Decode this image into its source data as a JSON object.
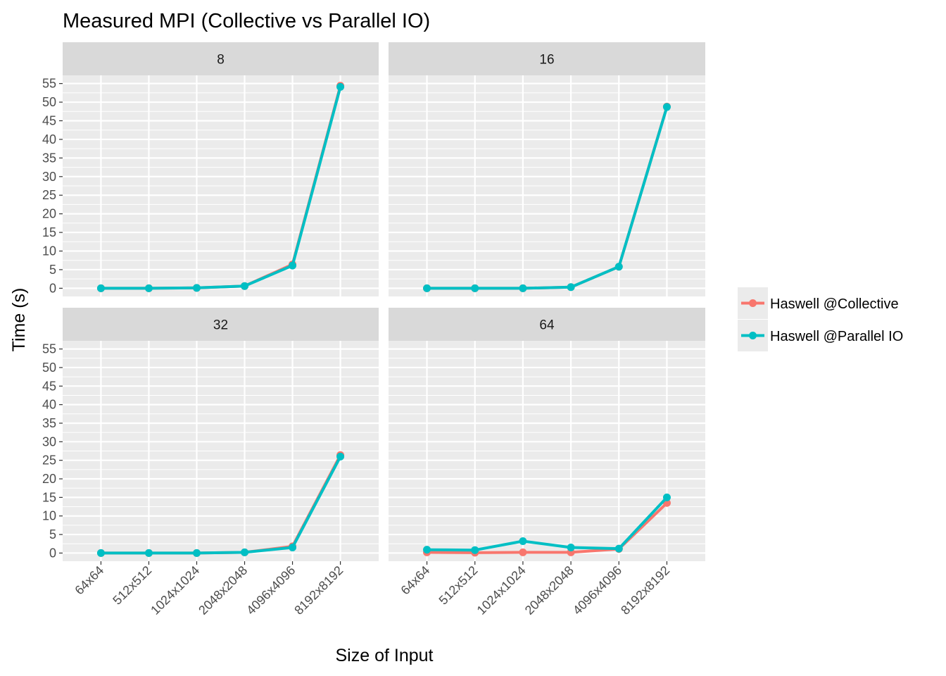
{
  "chart_data": {
    "type": "line",
    "title": "Measured MPI (Collective vs Parallel IO)",
    "xlabel": "Size of Input",
    "ylabel": "Time (s)",
    "categories": [
      "64x64",
      "512x512",
      "1024x1024",
      "2048x2048",
      "4096x4096",
      "8192x8192"
    ],
    "y_ticks": [
      "0",
      "5",
      "10",
      "15",
      "20",
      "25",
      "30",
      "35",
      "40",
      "45",
      "50",
      "55"
    ],
    "ylim": [
      -2.2,
      57.2
    ],
    "grid": true,
    "legend_position": "right",
    "series_colors": {
      "Haswell @Collective": "#f8766d",
      "Haswell @Parallel IO": "#00bfc4"
    },
    "legend": [
      "Haswell @Collective",
      "Haswell @Parallel IO"
    ],
    "panels": [
      {
        "label": "8",
        "series": [
          {
            "name": "Haswell @Collective",
            "values": [
              0.0,
              0.0,
              0.1,
              0.6,
              6.4,
              54.4
            ]
          },
          {
            "name": "Haswell @Parallel IO",
            "values": [
              0.0,
              0.0,
              0.1,
              0.6,
              6.1,
              54.1
            ]
          }
        ]
      },
      {
        "label": "16",
        "series": [
          {
            "name": "Haswell @Collective",
            "values": [
              0.0,
              0.0,
              0.0,
              0.3,
              5.8,
              48.8
            ]
          },
          {
            "name": "Haswell @Parallel IO",
            "values": [
              0.0,
              0.0,
              0.0,
              0.3,
              5.8,
              48.7
            ]
          }
        ]
      },
      {
        "label": "32",
        "series": [
          {
            "name": "Haswell @Collective",
            "values": [
              0.0,
              0.0,
              0.0,
              0.2,
              1.8,
              26.4
            ]
          },
          {
            "name": "Haswell @Parallel IO",
            "values": [
              0.0,
              0.0,
              0.0,
              0.2,
              1.5,
              26.0
            ]
          }
        ]
      },
      {
        "label": "64",
        "series": [
          {
            "name": "Haswell @Collective",
            "values": [
              0.2,
              0.1,
              0.2,
              0.2,
              1.1,
              13.5
            ]
          },
          {
            "name": "Haswell @Parallel IO",
            "values": [
              0.9,
              0.8,
              3.2,
              1.5,
              1.2,
              15.0
            ]
          }
        ]
      }
    ]
  }
}
